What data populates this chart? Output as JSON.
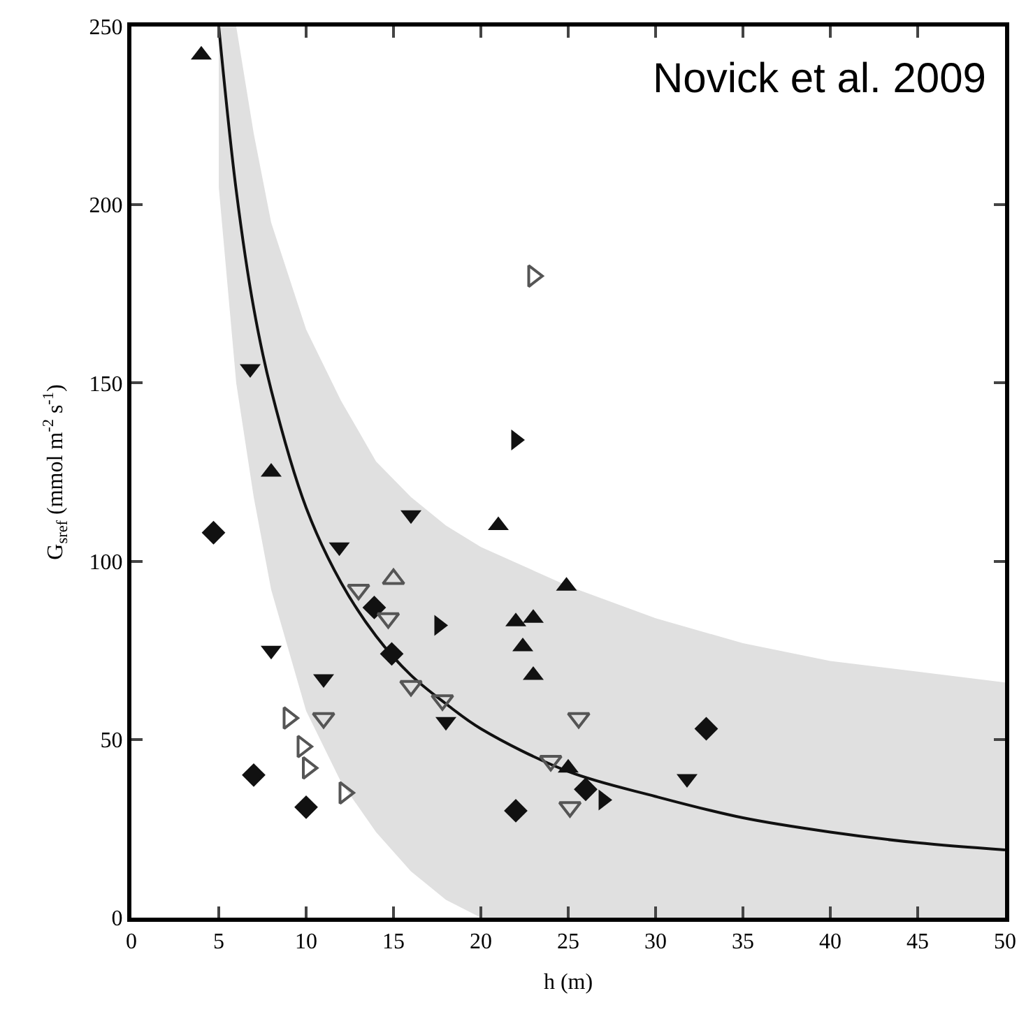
{
  "chart_data": {
    "type": "scatter",
    "xlabel": "h (m)",
    "ylabel": "G$_{sref}$ (mmol m$^{-2}$ s$^{-1}$)",
    "annotations": [
      "Novick et al. 2009"
    ],
    "xlim": [
      0,
      50
    ],
    "xticks": [
      0,
      5,
      10,
      15,
      20,
      25,
      30,
      35,
      40,
      45,
      50
    ],
    "ylim": [
      0,
      250
    ],
    "yticks": [
      0,
      50,
      100,
      150,
      200,
      250
    ],
    "series": [
      {
        "type": "line",
        "color": "#111111",
        "marker": "none",
        "line_style": "solid",
        "x": [
          5,
          6,
          7,
          8,
          10,
          12,
          14,
          16,
          18,
          20,
          25,
          30,
          35,
          40,
          45,
          50
        ],
        "values": [
          250,
          204,
          171,
          148,
          115,
          94,
          79,
          68,
          60,
          53,
          41,
          34,
          28,
          24,
          21,
          19
        ],
        "lower": [
          205,
          150,
          118,
          92,
          58,
          38,
          24,
          13,
          5,
          0,
          0,
          0,
          0,
          0,
          0,
          0
        ],
        "upper": [
          250,
          250,
          220,
          195,
          165,
          145,
          128,
          118,
          110,
          104,
          93,
          84,
          77,
          72,
          69,
          66
        ]
      },
      {
        "color": "#111111",
        "marker": "triangle-up",
        "x": [
          4,
          8,
          21,
          24.9,
          22,
          23,
          22.4,
          23,
          25
        ],
        "values": [
          242,
          125,
          110,
          93,
          83,
          84,
          76,
          68,
          42
        ]
      },
      {
        "color": "#111111",
        "marker": "triangle-down",
        "x": [
          6.8,
          8,
          11.9,
          16,
          11,
          18,
          31.8
        ],
        "values": [
          154,
          75,
          104,
          113,
          67,
          55,
          39
        ]
      },
      {
        "color": "#111111",
        "marker": "diamond",
        "x": [
          4.7,
          7,
          10,
          14.9,
          13.9,
          22,
          32.9,
          26
        ],
        "values": [
          108,
          40,
          31,
          74,
          87,
          30,
          53,
          36
        ]
      },
      {
        "color": "#111111",
        "marker": "triangle-right",
        "x": [
          22,
          17.6,
          27
        ],
        "values": [
          134,
          82,
          33
        ]
      },
      {
        "color": "#555555",
        "marker": "triangle-right-open",
        "x": [
          23,
          9,
          9.8,
          10.1,
          12.2
        ],
        "values": [
          180,
          56,
          48,
          42,
          35
        ]
      },
      {
        "color": "#555555",
        "marker": "triangle-up-open",
        "x": [
          15
        ],
        "values": [
          95
        ]
      },
      {
        "color": "#555555",
        "marker": "triangle-down-open",
        "x": [
          13,
          14.7,
          11,
          16,
          17.8,
          25.6,
          24,
          25.1
        ],
        "values": [
          92,
          84,
          56,
          65,
          61,
          56,
          44,
          31
        ]
      }
    ]
  }
}
